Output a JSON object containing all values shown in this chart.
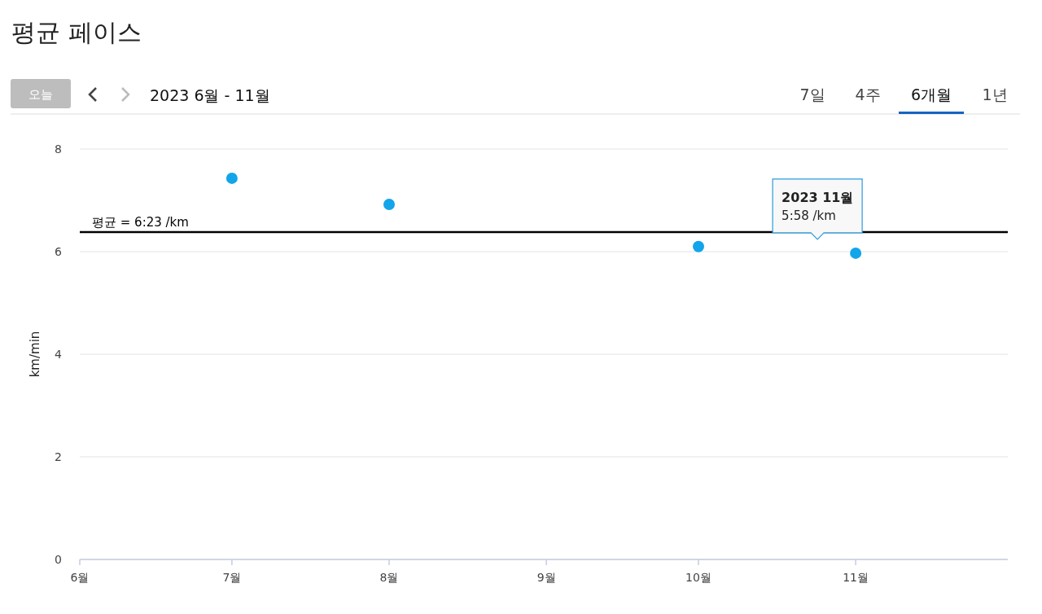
{
  "chart_data": {
    "type": "scatter",
    "title": "평균 페이스",
    "subtitle": "2023 6월 - 11월",
    "ylabel": "km/min",
    "x": [
      "2023-07",
      "2023-08",
      "2023-10",
      "2023-11"
    ],
    "series": [
      {
        "color": "#12a5ea",
        "values": [
          7.43,
          6.92,
          6.1,
          5.97
        ]
      }
    ],
    "xlim": [
      "2023-06",
      "2023-12"
    ],
    "xticks": [
      {
        "value": "2023-06",
        "label": "6월"
      },
      {
        "value": "2023-07",
        "label": "7월"
      },
      {
        "value": "2023-08",
        "label": "8월"
      },
      {
        "value": "2023-09",
        "label": "9월"
      },
      {
        "value": "2023-10",
        "label": "10월"
      },
      {
        "value": "2023-11",
        "label": "11월"
      }
    ],
    "ylim": [
      0,
      8
    ],
    "yticks": [
      0,
      2,
      4,
      6,
      8
    ],
    "grid": "y",
    "marker": "circle",
    "ref_lines": [
      {
        "axis": "y",
        "value": 6.38,
        "label": "평균 = 6:23 /km",
        "color": "#000000"
      }
    ],
    "annotations": [
      "오늘",
      "7일",
      "4주",
      "6개월",
      "1년",
      {
        "text": "2023 11월\n5:58 /km",
        "x": "2023-11",
        "y": 5.97
      }
    ]
  }
}
